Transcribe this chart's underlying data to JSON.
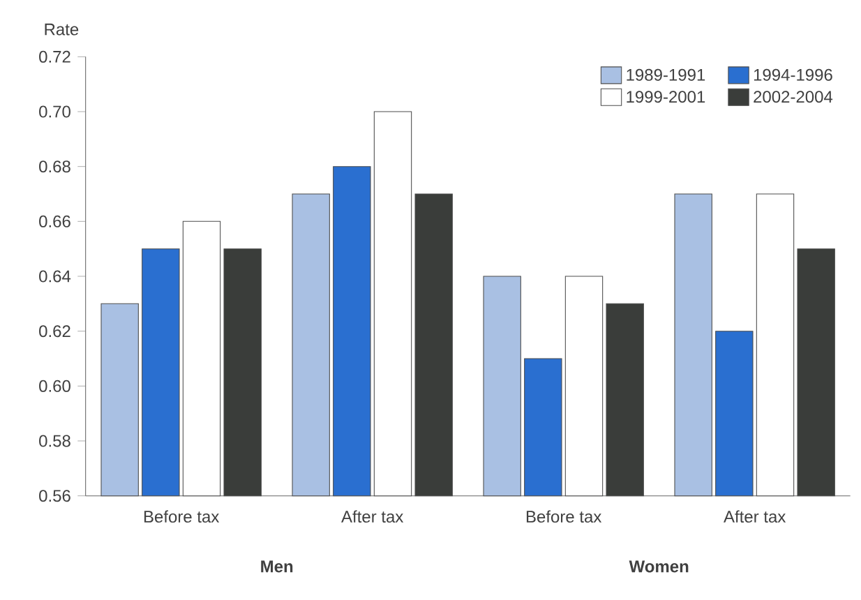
{
  "chart_data": {
    "type": "bar",
    "ylabel": "Rate",
    "categories": [
      "Before tax",
      "After tax",
      "Before tax",
      "After tax"
    ],
    "annotations": [
      "Men",
      "Women"
    ],
    "series": [
      {
        "name": "1989-1991",
        "color": "#a9c0e3",
        "values": [
          0.63,
          0.67,
          0.64,
          0.67
        ]
      },
      {
        "name": "1994-1996",
        "color": "#2a6fd0",
        "values": [
          0.65,
          0.68,
          0.61,
          0.62
        ]
      },
      {
        "name": "1999-2001",
        "color": "#ffffff",
        "values": [
          0.66,
          0.7,
          0.64,
          0.67
        ]
      },
      {
        "name": "2002-2004",
        "color": "#3a3d3a",
        "values": [
          0.65,
          0.67,
          0.63,
          0.65
        ]
      }
    ],
    "ylim": [
      0.56,
      0.72
    ],
    "yticks": [
      {
        "value": 0.56,
        "label": "0.56"
      },
      {
        "value": 0.58,
        "label": "0.58"
      },
      {
        "value": 0.6,
        "label": "0.60"
      },
      {
        "value": 0.62,
        "label": "0.62"
      },
      {
        "value": 0.64,
        "label": "0.64"
      },
      {
        "value": 0.66,
        "label": "0.66"
      },
      {
        "value": 0.68,
        "label": "0.68"
      },
      {
        "value": 0.7,
        "label": "0.70"
      },
      {
        "value": 0.72,
        "label": "0.72"
      }
    ],
    "legend": "top right",
    "grid": false
  }
}
